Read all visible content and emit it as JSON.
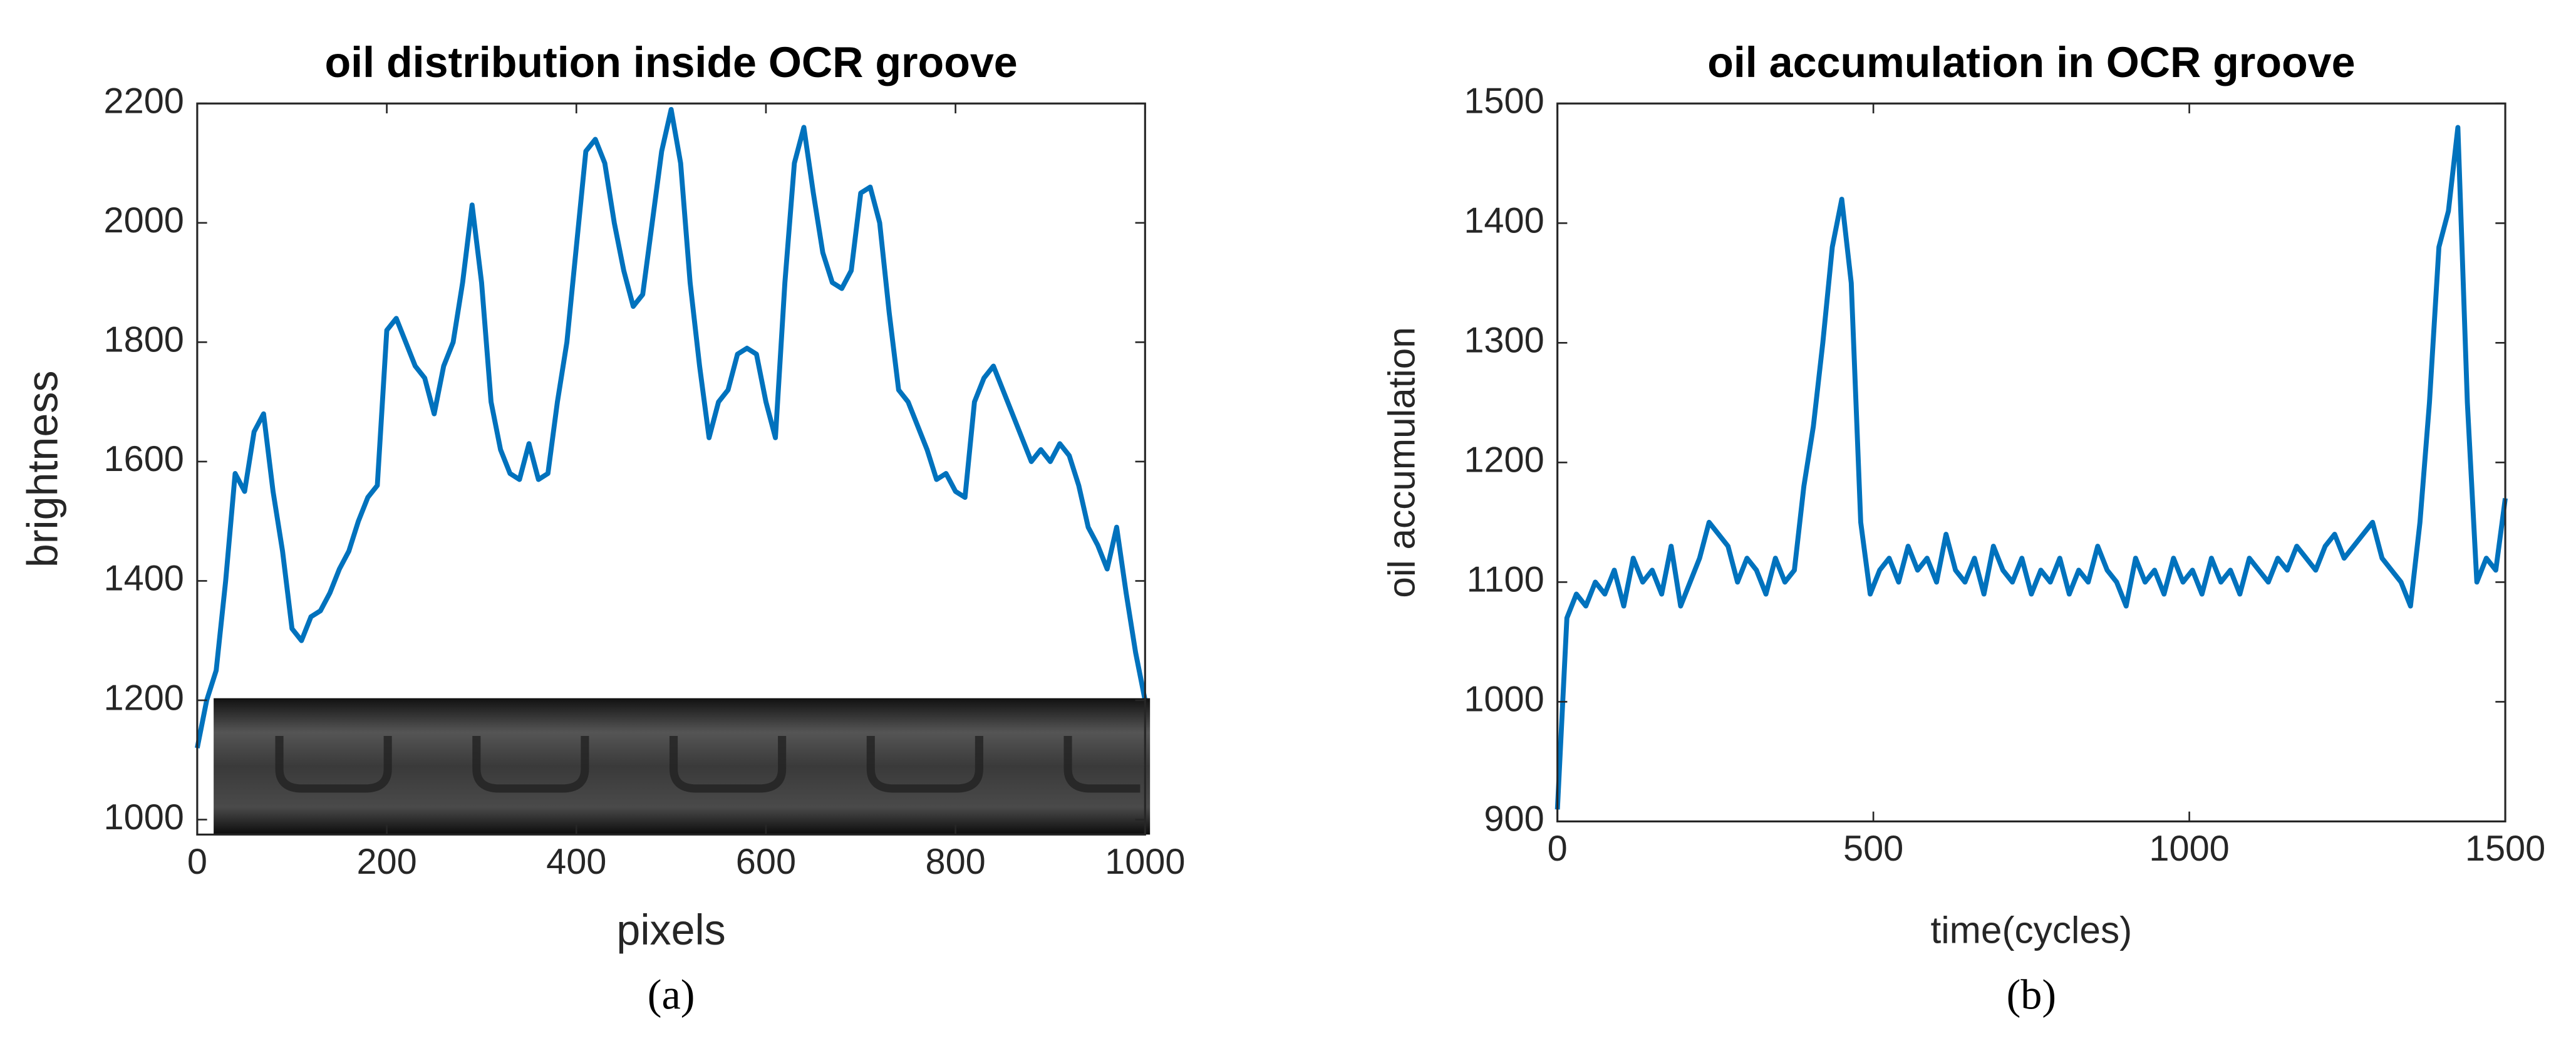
{
  "chart_data": [
    {
      "type": "line",
      "title": "oil distribution inside OCR groove",
      "xlabel": "pixels",
      "ylabel": "brightness",
      "caption": "(a)",
      "x": [
        0,
        10,
        20,
        30,
        40,
        50,
        60,
        70,
        80,
        90,
        100,
        110,
        120,
        130,
        140,
        150,
        160,
        170,
        180,
        190,
        200,
        210,
        220,
        230,
        240,
        250,
        260,
        270,
        280,
        290,
        300,
        310,
        320,
        330,
        340,
        350,
        360,
        370,
        380,
        390,
        400,
        410,
        420,
        430,
        440,
        450,
        460,
        470,
        480,
        490,
        500,
        510,
        520,
        530,
        540,
        550,
        560,
        570,
        580,
        590,
        600,
        610,
        620,
        630,
        640,
        650,
        660,
        670,
        680,
        690,
        700,
        710,
        720,
        730,
        740,
        750,
        760,
        770,
        780,
        790,
        800,
        810,
        820,
        830,
        840,
        850,
        860,
        870,
        880,
        890,
        900,
        910,
        920,
        930,
        940,
        950,
        960,
        970,
        980,
        990,
        1000
      ],
      "series": [
        {
          "color": "#0072bd",
          "values": [
            1120,
            1200,
            1250,
            1400,
            1580,
            1550,
            1650,
            1680,
            1550,
            1450,
            1320,
            1300,
            1340,
            1350,
            1380,
            1420,
            1450,
            1500,
            1540,
            1560,
            1820,
            1840,
            1800,
            1760,
            1740,
            1680,
            1760,
            1800,
            1900,
            2030,
            1900,
            1700,
            1620,
            1580,
            1570,
            1630,
            1570,
            1580,
            1700,
            1800,
            1960,
            2120,
            2140,
            2100,
            2000,
            1920,
            1860,
            1880,
            2000,
            2120,
            2190,
            2100,
            1900,
            1760,
            1640,
            1700,
            1720,
            1780,
            1790,
            1780,
            1700,
            1640,
            1900,
            2100,
            2160,
            2050,
            1950,
            1900,
            1890,
            1920,
            2050,
            2060,
            2000,
            1850,
            1720,
            1700,
            1660,
            1620,
            1570,
            1580,
            1550,
            1540,
            1700,
            1740,
            1760,
            1720,
            1680,
            1640,
            1600,
            1620,
            1600,
            1630,
            1610,
            1560,
            1490,
            1460,
            1420,
            1490,
            1380,
            1280,
            1200
          ]
        }
      ],
      "xlim": [
        0,
        1000
      ],
      "ylim": [
        975,
        2200
      ],
      "xticks": [
        0,
        200,
        400,
        600,
        800,
        1000
      ],
      "yticks": [
        1000,
        1200,
        1400,
        1600,
        1800,
        2000,
        2200
      ]
    },
    {
      "type": "line",
      "title": "oil accumulation in OCR groove",
      "xlabel": "time(cycles)",
      "ylabel": "oil accumulation",
      "caption": "(b)",
      "x": [
        0,
        15,
        30,
        45,
        60,
        75,
        90,
        105,
        120,
        135,
        150,
        165,
        180,
        195,
        210,
        225,
        240,
        255,
        270,
        285,
        300,
        315,
        330,
        345,
        360,
        375,
        390,
        405,
        420,
        435,
        450,
        465,
        480,
        495,
        510,
        525,
        540,
        555,
        570,
        585,
        600,
        615,
        630,
        645,
        660,
        675,
        690,
        705,
        720,
        735,
        750,
        765,
        780,
        795,
        810,
        825,
        840,
        855,
        870,
        885,
        900,
        915,
        930,
        945,
        960,
        975,
        990,
        1005,
        1020,
        1035,
        1050,
        1065,
        1080,
        1095,
        1110,
        1125,
        1140,
        1155,
        1170,
        1185,
        1200,
        1215,
        1230,
        1245,
        1260,
        1275,
        1290,
        1305,
        1320,
        1335,
        1350,
        1365,
        1380,
        1395,
        1410,
        1425,
        1440,
        1455,
        1470,
        1485,
        1500
      ],
      "series": [
        {
          "color": "#0072bd",
          "values": [
            910,
            1070,
            1090,
            1080,
            1100,
            1090,
            1110,
            1080,
            1120,
            1100,
            1110,
            1090,
            1130,
            1080,
            1100,
            1120,
            1150,
            1140,
            1130,
            1100,
            1120,
            1110,
            1090,
            1120,
            1100,
            1110,
            1180,
            1230,
            1300,
            1380,
            1420,
            1350,
            1150,
            1090,
            1110,
            1120,
            1100,
            1130,
            1110,
            1120,
            1100,
            1140,
            1110,
            1100,
            1120,
            1090,
            1130,
            1110,
            1100,
            1120,
            1090,
            1110,
            1100,
            1120,
            1090,
            1110,
            1100,
            1130,
            1110,
            1100,
            1080,
            1120,
            1100,
            1110,
            1090,
            1120,
            1100,
            1110,
            1090,
            1120,
            1100,
            1110,
            1090,
            1120,
            1110,
            1100,
            1120,
            1110,
            1130,
            1120,
            1110,
            1130,
            1140,
            1120,
            1130,
            1140,
            1150,
            1120,
            1110,
            1100,
            1080,
            1150,
            1250,
            1380,
            1410,
            1480,
            1250,
            1100,
            1120,
            1110,
            1170
          ]
        }
      ],
      "xlim": [
        0,
        1500
      ],
      "ylim": [
        900,
        1500
      ],
      "xticks": [
        0,
        500,
        1000,
        1500
      ],
      "yticks": [
        900,
        1000,
        1100,
        1200,
        1300,
        1400,
        1500
      ]
    }
  ]
}
